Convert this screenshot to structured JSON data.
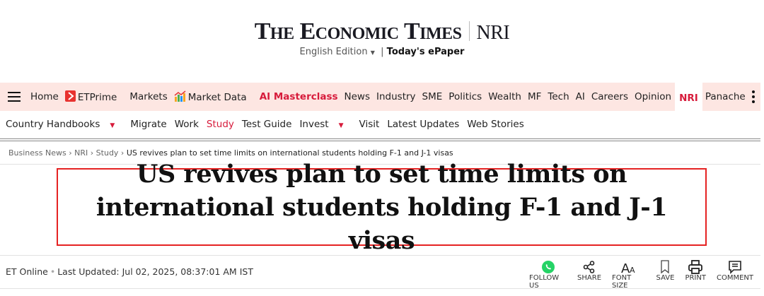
{
  "header": {
    "logo": "The Economic Times",
    "section": "NRI",
    "edition": "English Edition",
    "epaper": "Today's ePaper"
  },
  "nav": {
    "items": [
      "Home",
      "ETPrime",
      "Markets",
      "Market Data",
      "AI Masterclass",
      "News",
      "Industry",
      "SME",
      "Politics",
      "Wealth",
      "MF",
      "Tech",
      "AI",
      "Careers",
      "Opinion",
      "NRI",
      "Panache"
    ]
  },
  "subnav": {
    "items": [
      "Country Handbooks",
      "Migrate",
      "Work",
      "Study",
      "Test Guide",
      "Invest",
      "Visit",
      "Latest Updates",
      "Web Stories"
    ]
  },
  "breadcrumb": [
    "Business News",
    "NRI",
    "Study",
    "US revives plan to set time limits on international students holding F-1 and J-1 visas"
  ],
  "article": {
    "title": "US revives plan to set time limits on international students holding F-1 and J-1 visas",
    "author": "ET Online",
    "updated": "Last Updated: Jul 02, 2025, 08:37:01 AM IST"
  },
  "tools": [
    "FOLLOW US",
    "SHARE",
    "FONT SIZE",
    "SAVE",
    "PRINT",
    "COMMENT"
  ],
  "colors": {
    "accent": "#d71b3b",
    "nav_bg": "#fde6e2",
    "highlight_border": "#e52222",
    "whatsapp": "#25d366"
  }
}
